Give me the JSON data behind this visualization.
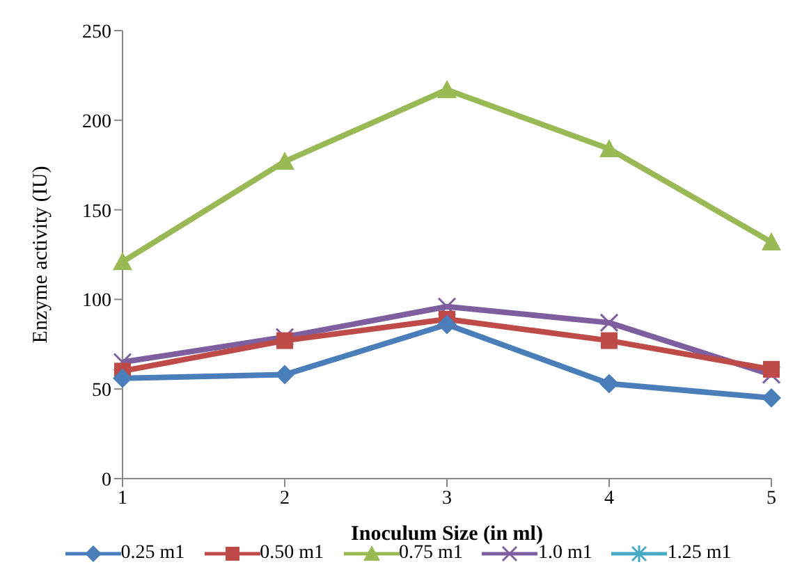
{
  "chart_data": {
    "type": "line",
    "xlabel": "Inoculum Size (in ml)",
    "ylabel": "Enzyme activity  (IU)",
    "categories": [
      "1",
      "2",
      "3",
      "4",
      "5"
    ],
    "ylim": [
      0,
      250
    ],
    "yticks": [
      0,
      50,
      100,
      150,
      200,
      250
    ],
    "grid": false,
    "legend": "bottom",
    "series": [
      {
        "name": "0.25 m1",
        "color": "#4a7ebb",
        "marker": "diamond",
        "values": [
          56,
          58,
          86,
          53,
          45
        ]
      },
      {
        "name": "0.50 m1",
        "color": "#be4b48",
        "marker": "square",
        "values": [
          60,
          77,
          89,
          77,
          61
        ]
      },
      {
        "name": "0.75 m1",
        "color": "#98b954",
        "marker": "triangle",
        "values": [
          121,
          177,
          217,
          184,
          132
        ]
      },
      {
        "name": "1.0 m1",
        "color": "#7d5fa0",
        "marker": "cross",
        "values": [
          65,
          79,
          96,
          87,
          58
        ]
      },
      {
        "name": "1.25 m1",
        "color": "#46aac5",
        "marker": "star",
        "values": [
          null,
          null,
          null,
          null,
          null
        ]
      }
    ]
  }
}
